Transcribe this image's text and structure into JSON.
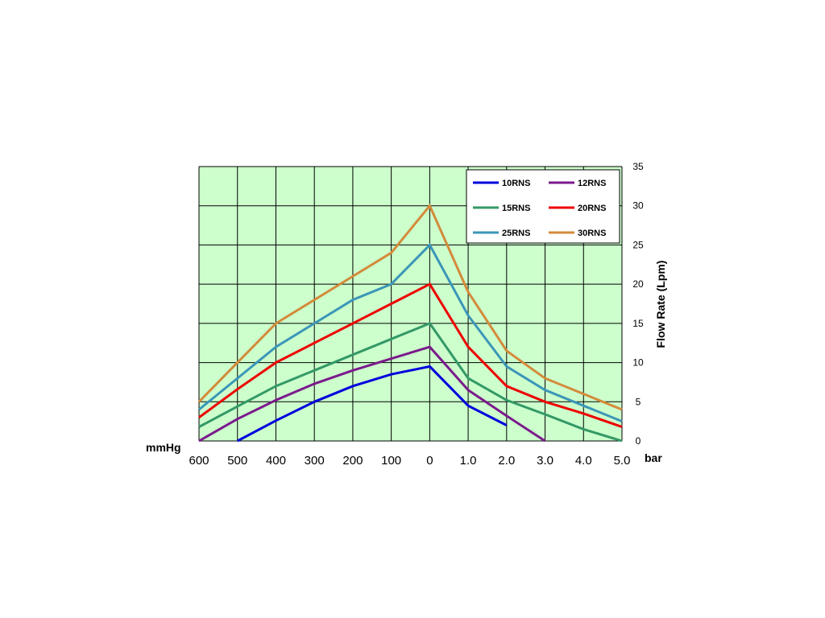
{
  "chart_data": {
    "type": "line",
    "ylabel": "Flow Rate (Lpm)",
    "x_left_unit": "mmHg",
    "x_right_unit": "bar",
    "categories": [
      "600",
      "500",
      "400",
      "300",
      "200",
      "100",
      "0",
      "1.0",
      "2.0",
      "3.0",
      "4.0",
      "5.0"
    ],
    "ylim": [
      0,
      35
    ],
    "yticks": [
      "0",
      "5",
      "10",
      "15",
      "20",
      "25",
      "30",
      "35"
    ],
    "grid": true,
    "plot_background": "#ccffcc",
    "legend_position": "top-right",
    "series": [
      {
        "name": "10RNS",
        "color": "#0000dd",
        "values": [
          null,
          0,
          2.6,
          5,
          7,
          8.5,
          9.5,
          4.5,
          2,
          null,
          null,
          null
        ]
      },
      {
        "name": "12RNS",
        "color": "#7b1a8c",
        "values": [
          0,
          2.8,
          5.2,
          7.3,
          9,
          10.5,
          12,
          6.5,
          3.2,
          0,
          null,
          null
        ]
      },
      {
        "name": "15RNS",
        "color": "#339966",
        "values": [
          1.8,
          4.4,
          7,
          9,
          11,
          13,
          15,
          8,
          5.2,
          3.4,
          1.5,
          0
        ]
      },
      {
        "name": "20RNS",
        "color": "#ee0000",
        "values": [
          3,
          6.6,
          10,
          12.5,
          15,
          17.5,
          20,
          12,
          7,
          5,
          3.5,
          1.8
        ]
      },
      {
        "name": "25RNS",
        "color": "#3b96b8",
        "values": [
          4,
          8,
          12,
          15,
          18,
          20,
          25,
          16,
          9.5,
          6.5,
          4.5,
          2.5
        ]
      },
      {
        "name": "30RNS",
        "color": "#d48a3a",
        "values": [
          5,
          10,
          15,
          18,
          21,
          24,
          30,
          19,
          11.5,
          8,
          6,
          4
        ]
      }
    ]
  }
}
